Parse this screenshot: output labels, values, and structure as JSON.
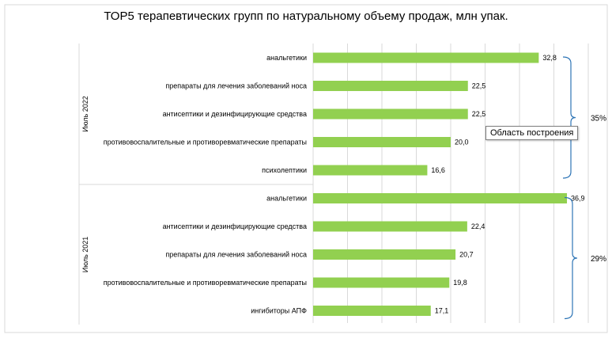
{
  "chart_data": {
    "type": "bar",
    "orientation": "horizontal",
    "title": "ТОР5 терапевтических групп по натуральному объему продаж, млн упак.",
    "xlim": [
      0,
      40
    ],
    "grid": true,
    "bar_color": "#92d050",
    "bracket_color": "#2e75b6",
    "groups": [
      {
        "name": "Июль 2022",
        "share": "35%",
        "categories": [
          "анальгетики",
          "препараты для лечения заболеваний носа",
          "антисептики и дезинфицирующие средства",
          "противовоспалительные и противоревматические препараты",
          "психолептики"
        ],
        "values": [
          32.8,
          22.5,
          22.5,
          20.0,
          16.6
        ],
        "labels": [
          "32,8",
          "22,5",
          "22,5",
          "20,0",
          "16,6"
        ]
      },
      {
        "name": "Июль 2021",
        "share": "29%",
        "categories": [
          "анальгетики",
          "антисептики и дезинфицирующие средства",
          "препараты для лечения заболеваний носа",
          "противовоспалительные и противоревматические препараты",
          "ингибиторы АПФ"
        ],
        "values": [
          36.9,
          22.4,
          20.7,
          19.8,
          17.1
        ],
        "labels": [
          "36,9",
          "22,4",
          "20,7",
          "19,8",
          "17,1"
        ]
      }
    ]
  },
  "tooltip": {
    "text": "Область построения"
  }
}
